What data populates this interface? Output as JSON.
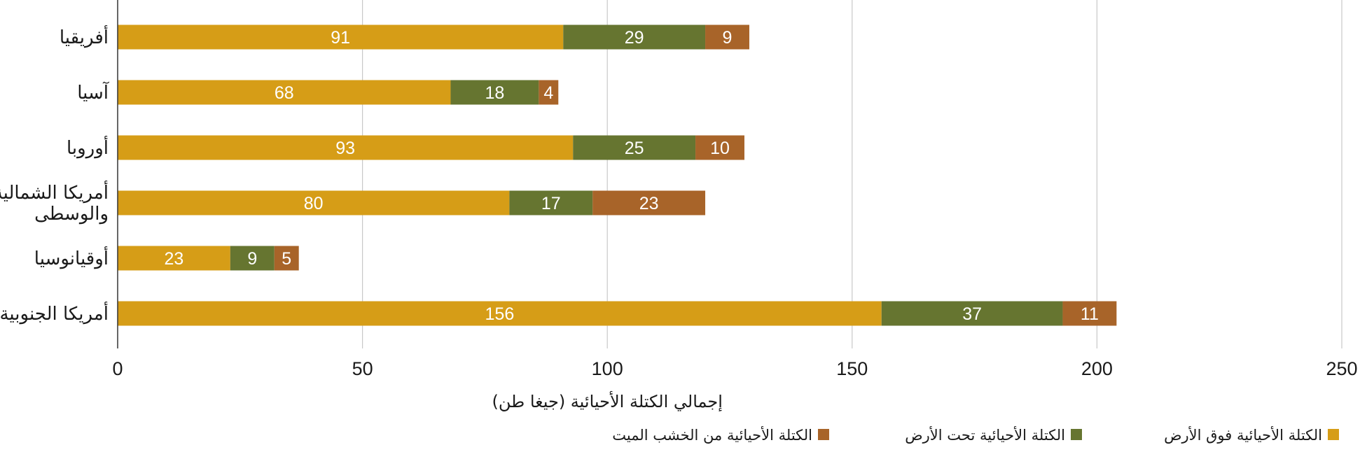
{
  "chart_data": {
    "type": "bar",
    "orientation": "horizontal",
    "stacked": true,
    "categories": [
      "أفريقيا",
      "آسيا",
      "أوروبا",
      "أمريكا الشمالية والوسطى",
      "أوقيانوسيا",
      "أمريكا الجنوبية"
    ],
    "category_lines": [
      [
        "أفريقيا"
      ],
      [
        "آسيا"
      ],
      [
        "أوروبا"
      ],
      [
        "أمريكا الشمالية",
        "والوسطى"
      ],
      [
        "أوقيانوسيا"
      ],
      [
        "أمريكا الجنوبية"
      ]
    ],
    "series": [
      {
        "name": "الكتلة الأحيائية فوق الأرض",
        "color": "#D69D17",
        "values": [
          91,
          68,
          93,
          80,
          23,
          156
        ]
      },
      {
        "name": "الكتلة الأحيائية تحت الأرض",
        "color": "#667530",
        "values": [
          29,
          18,
          25,
          17,
          9,
          37
        ]
      },
      {
        "name": "الكتلة الأحيائية من الخشب الميت",
        "color": "#A86429",
        "values": [
          9,
          4,
          10,
          23,
          5,
          11
        ]
      }
    ],
    "xlabel": "إجمالي الكتلة الأحيائية (جيغا طن)",
    "ylabel": "",
    "xlim": [
      0,
      250
    ],
    "xticks": [
      0,
      50,
      100,
      150,
      200,
      250
    ],
    "grid": true,
    "legend_position": "bottom"
  }
}
